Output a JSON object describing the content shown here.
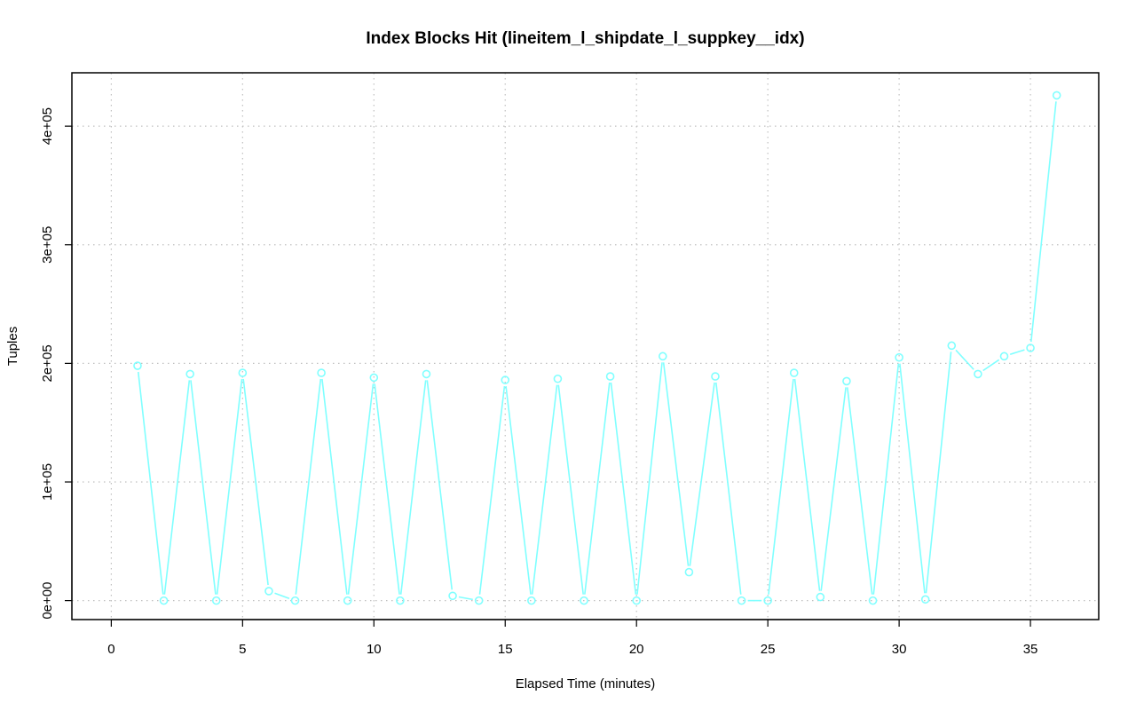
{
  "chart_data": {
    "type": "line",
    "title": "Index Blocks Hit (lineitem_l_shipdate_l_suppkey__idx)",
    "xlabel": "Elapsed Time (minutes)",
    "ylabel": "Tuples",
    "xlim": [
      -1.5,
      37.6
    ],
    "ylim": [
      -16000,
      445000
    ],
    "x_ticks": [
      0,
      5,
      10,
      15,
      20,
      25,
      30,
      35
    ],
    "x_tick_labels": [
      "0",
      "5",
      "10",
      "15",
      "20",
      "25",
      "30",
      "35"
    ],
    "y_ticks": [
      0,
      100000,
      200000,
      300000,
      400000
    ],
    "y_tick_labels": [
      "0e+00",
      "1e+05",
      "2e+05",
      "3e+05",
      "4e+05"
    ],
    "grid": true,
    "series": [
      {
        "color": "#80ffff",
        "marker": "circle",
        "x": [
          1,
          2,
          3,
          4,
          5,
          6,
          7,
          8,
          9,
          10,
          11,
          12,
          13,
          14,
          15,
          16,
          17,
          18,
          19,
          20,
          21,
          22,
          23,
          24,
          25,
          26,
          27,
          28,
          29,
          30,
          31,
          32,
          33,
          34,
          35,
          36
        ],
        "values": [
          198000,
          0,
          191000,
          0,
          192000,
          8000,
          0,
          192000,
          0,
          188000,
          0,
          191000,
          4000,
          0,
          186000,
          0,
          187000,
          0,
          189000,
          0,
          206000,
          24000,
          189000,
          0,
          0,
          192000,
          3000,
          185000,
          0,
          205000,
          1000,
          215000,
          191000,
          206000,
          213000,
          426000
        ]
      }
    ]
  }
}
